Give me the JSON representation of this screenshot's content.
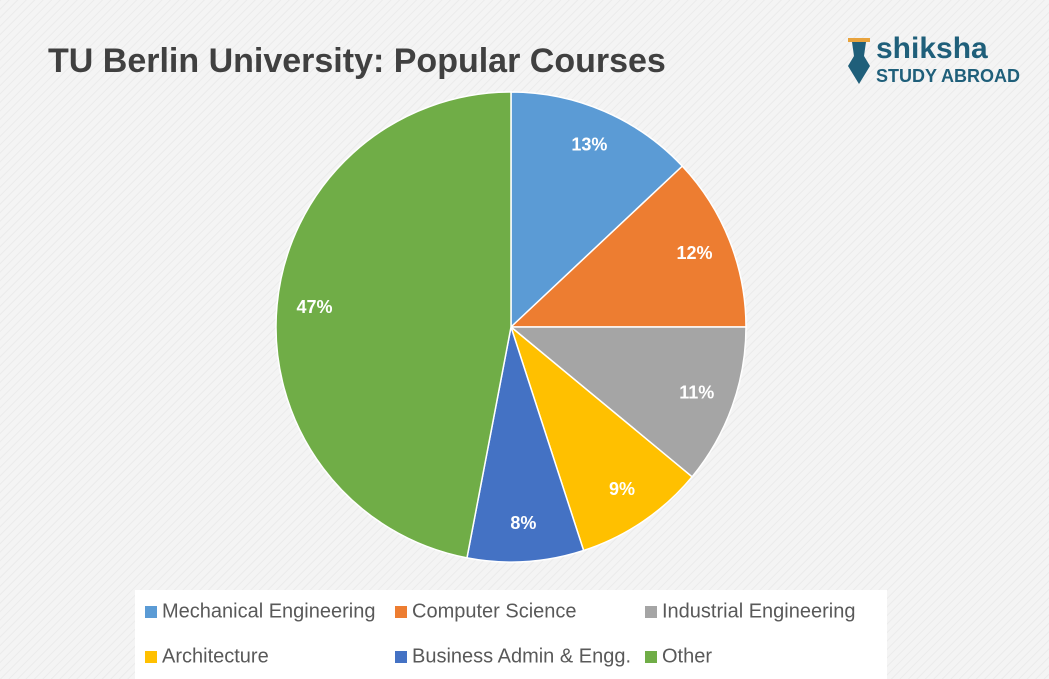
{
  "chart_data": {
    "type": "pie",
    "title": "TU Berlin University: Popular Courses",
    "categories": [
      "Mechanical Engineering",
      "Computer Science",
      "Industrial Engineering",
      "Architecture",
      "Business Admin & Engg.",
      "Other"
    ],
    "values": [
      13,
      12,
      11,
      9,
      8,
      47
    ],
    "value_labels": [
      "13%",
      "12%",
      "11%",
      "9%",
      "8%",
      "47%"
    ],
    "colors": [
      "#5b9bd5",
      "#ed7d31",
      "#a5a5a5",
      "#ffc000",
      "#4472c4",
      "#70ad47"
    ],
    "legend": "bottom"
  },
  "logo": {
    "name": "shiksha",
    "tagline": "STUDY ABROAD"
  }
}
